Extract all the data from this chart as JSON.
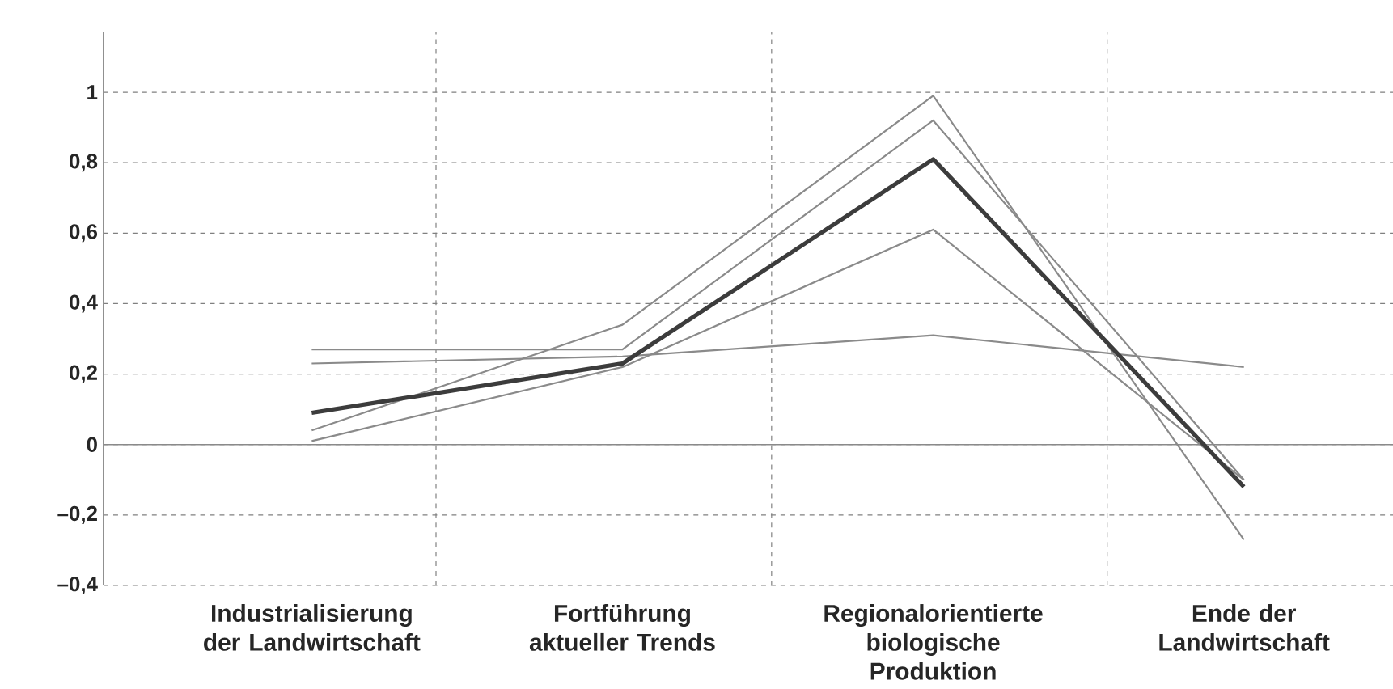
{
  "chart_data": {
    "type": "line",
    "categories": [
      "Industrialisierung der Landwirtschaft",
      "Fortführung aktueller Trends",
      "Regionalorientierte biologische Produktion",
      "Ende der Landwirtschaft"
    ],
    "series": [
      {
        "color": "#8a8a8a",
        "values": [
          0.04,
          0.34,
          0.99,
          -0.27
        ]
      },
      {
        "color": "#8a8a8a",
        "values": [
          0.27,
          0.27,
          0.92,
          -0.1
        ]
      },
      {
        "color": "#8a8a8a",
        "values": [
          0.01,
          0.22,
          0.61,
          -0.1
        ]
      },
      {
        "color": "#8a8a8a",
        "values": [
          0.23,
          0.25,
          0.31,
          0.22
        ]
      },
      {
        "color": "#3c3c3c",
        "values": [
          0.09,
          0.23,
          0.81,
          -0.12
        ]
      }
    ],
    "ylim": [
      -0.4,
      1.17
    ],
    "yticks": [
      {
        "value": -0.4,
        "label": "–0,4"
      },
      {
        "value": -0.2,
        "label": "–0,2"
      },
      0,
      {
        "value": 0.2,
        "label": "0,2"
      },
      {
        "value": 0.4,
        "label": "0,4"
      },
      {
        "value": 0.6,
        "label": "0,6"
      },
      {
        "value": 0.8,
        "label": "0,8"
      },
      1
    ],
    "ref_lines": [
      {
        "axis": "y",
        "value": 0,
        "color": "#8a8a8a"
      }
    ],
    "grid": true,
    "marker": "none",
    "line_style": "solid"
  }
}
